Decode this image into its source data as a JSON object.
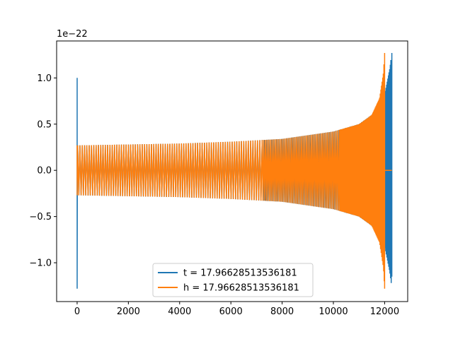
{
  "chart_data": {
    "type": "line",
    "title": "",
    "xlabel": "",
    "ylabel": "",
    "xlim": [
      -800,
      12900
    ],
    "ylim": [
      -1.42,
      1.4
    ],
    "y_offset_label": "1e−22",
    "xticks": [
      0,
      2000,
      4000,
      6000,
      8000,
      10000,
      12000
    ],
    "xtick_labels": [
      "0",
      "2000",
      "4000",
      "6000",
      "8000",
      "10000",
      "12000"
    ],
    "yticks": [
      -1.0,
      -0.5,
      0.0,
      0.5,
      1.0
    ],
    "ytick_labels": [
      "−1.0",
      "−0.5",
      "0.0",
      "0.5",
      "1.0"
    ],
    "grid": false,
    "legend_position": "lower center",
    "series": [
      {
        "name": "t = 17.96628513536181",
        "color": "#1f77b4",
        "start_spike": [
          0,
          1.0,
          -1.28
        ],
        "envelope": [
          [
            0,
            0.27
          ],
          [
            2000,
            0.28
          ],
          [
            4000,
            0.29
          ],
          [
            6000,
            0.31
          ],
          [
            8000,
            0.34
          ],
          [
            10000,
            0.42
          ],
          [
            11000,
            0.5
          ],
          [
            11500,
            0.6
          ],
          [
            12000,
            0.82
          ],
          [
            12200,
            1.1
          ],
          [
            12280,
            1.27
          ]
        ],
        "end_x": 12280,
        "end_peak": [
          1.27,
          -1.15
        ]
      },
      {
        "name": "h = 17.96628513536181",
        "color": "#ff7f0e",
        "start_spike": [
          0,
          0.27,
          -0.27
        ],
        "envelope": [
          [
            0,
            0.27
          ],
          [
            2000,
            0.28
          ],
          [
            4000,
            0.29
          ],
          [
            6000,
            0.31
          ],
          [
            8000,
            0.34
          ],
          [
            10000,
            0.42
          ],
          [
            11000,
            0.5
          ],
          [
            11500,
            0.6
          ],
          [
            11800,
            0.78
          ],
          [
            11950,
            1.05
          ],
          [
            12000,
            1.27
          ]
        ],
        "end_x": 12000,
        "end_peak": [
          1.27,
          -1.28
        ],
        "flat_after": [
          12000,
          12280
        ]
      }
    ]
  }
}
